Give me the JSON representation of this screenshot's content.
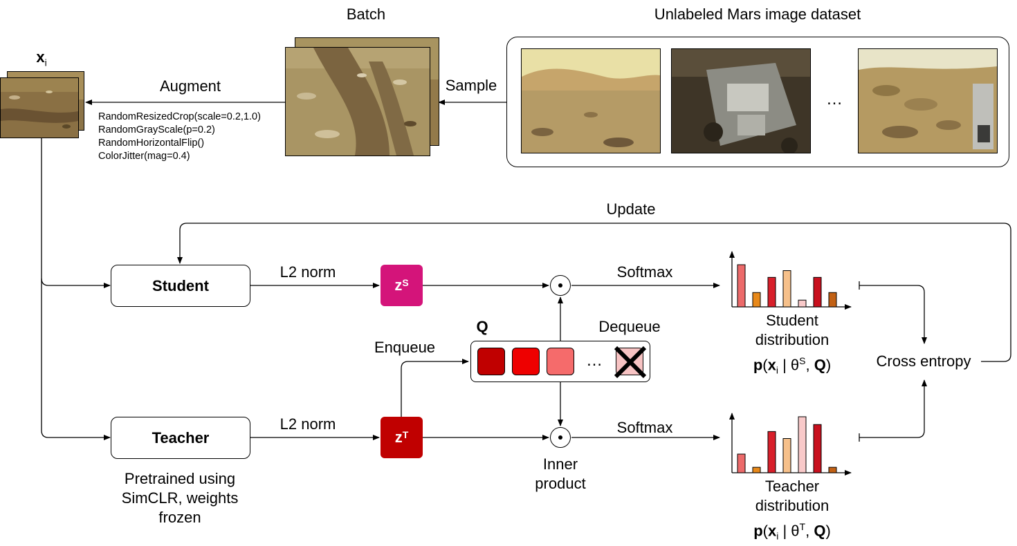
{
  "headers": {
    "batch": "Batch",
    "dataset": "Unlabeled Mars image dataset",
    "xi_base": "x",
    "xi_sub": "i"
  },
  "arrows": {
    "augment": "Augment",
    "sample": "Sample",
    "update": "Update",
    "l2_student": "L2 norm",
    "l2_teacher": "L2 norm",
    "softmax_student": "Softmax",
    "softmax_teacher": "Softmax",
    "enqueue": "Enqueue",
    "dequeue": "Dequeue"
  },
  "augmentations": [
    "RandomResizedCrop(scale=0.2,1.0)",
    "RandomGrayScale(p=0.2)",
    "RandomHorizontalFlip()",
    "ColorJitter(mag=0.4)"
  ],
  "dataset_ellipsis": "…",
  "nodes": {
    "student": "Student",
    "teacher": "Teacher",
    "teacher_note": [
      "Pretrained using",
      "SimCLR, weights",
      "frozen"
    ],
    "zs_base": "z",
    "zs_sup": "S",
    "zt_base": "z",
    "zt_sup": "T",
    "queue_label": "Q",
    "queue_ellipsis": "…",
    "inner_product": [
      "Inner",
      "product"
    ],
    "cross_entropy": "Cross entropy"
  },
  "distributions": {
    "student_title": [
      "Student",
      "distribution"
    ],
    "teacher_title": [
      "Teacher",
      "distribution"
    ],
    "student_formula": {
      "p": "p",
      "x": "x",
      "sub": "i",
      "theta": " | θ",
      "sup": "S",
      "q": "Q"
    },
    "teacher_formula": {
      "p": "p",
      "x": "x",
      "sub": "i",
      "theta": " | θ",
      "sup": "T",
      "q": "Q"
    }
  },
  "colors": {
    "zs": "#d4147a",
    "zt": "#c00000",
    "queue": [
      "#c00000",
      "#ee0000",
      "#f56b6b"
    ],
    "queue_dequeued": "#f7c3c3",
    "bars": [
      "#ec6a6a",
      "#e8891a",
      "#d81f2a",
      "#f6c08a",
      "#f8c9c9",
      "#c8101e",
      "#c26114"
    ]
  },
  "chart_data": [
    {
      "type": "bar",
      "title": "",
      "series": [
        {
          "values": [
            5.0,
            1.7,
            3.5,
            4.3,
            0.8,
            3.5,
            1.7
          ]
        }
      ],
      "categories": [
        "",
        "",
        "",
        "",
        "",
        "",
        ""
      ]
    },
    {
      "type": "bar",
      "title": "",
      "series": [
        {
          "values": [
            2.4,
            0.7,
            5.3,
            4.4,
            7.2,
            6.2,
            0.7
          ]
        }
      ],
      "categories": [
        "",
        "",
        "",
        "",
        "",
        "",
        ""
      ]
    }
  ]
}
